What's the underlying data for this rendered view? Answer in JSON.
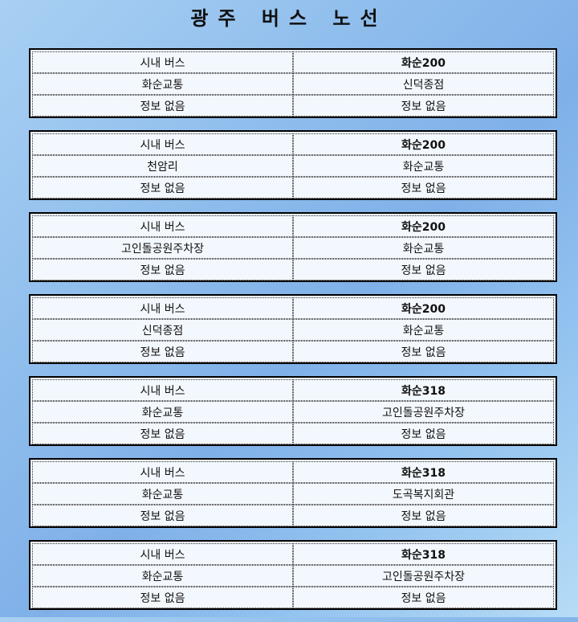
{
  "page": {
    "title": "광주 버스 노선"
  },
  "routes": [
    {
      "type": "시내 버스",
      "name": "화순200",
      "origin": "화순교통",
      "destination": "신덕종점",
      "info_left": "정보 없음",
      "info_right": "정보 없음"
    },
    {
      "type": "시내 버스",
      "name": "화순200",
      "origin": "천암리",
      "destination": "화순교통",
      "info_left": "정보 없음",
      "info_right": "정보 없음"
    },
    {
      "type": "시내 버스",
      "name": "화순200",
      "origin": "고인돌공원주차장",
      "destination": "화순교통",
      "info_left": "정보 없음",
      "info_right": "정보 없음"
    },
    {
      "type": "시내 버스",
      "name": "화순200",
      "origin": "신덕종점",
      "destination": "화순교통",
      "info_left": "정보 없음",
      "info_right": "정보 없음"
    },
    {
      "type": "시내 버스",
      "name": "화순318",
      "origin": "화순교통",
      "destination": "고인돌공원주차장",
      "info_left": "정보 없음",
      "info_right": "정보 없음"
    },
    {
      "type": "시내 버스",
      "name": "화순318",
      "origin": "화순교통",
      "destination": "도곡복지회관",
      "info_left": "정보 없음",
      "info_right": "정보 없음"
    },
    {
      "type": "시내 버스",
      "name": "화순318",
      "origin": "화순교통",
      "destination": "고인돌공원주차장",
      "info_left": "정보 없음",
      "info_right": "정보 없음"
    }
  ]
}
